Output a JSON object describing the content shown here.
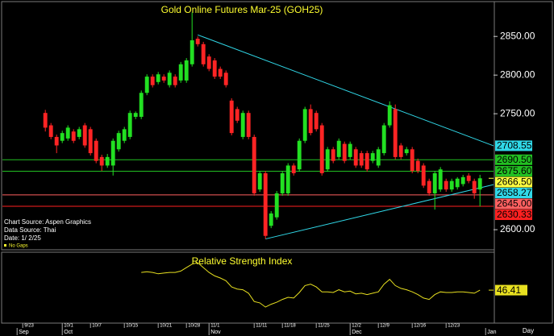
{
  "chart_data": [
    {
      "type": "candlestick",
      "title": "Gold Online Futures Mar-25 (GOH25)",
      "notes": [
        "Chart Source: Aspen Graphics",
        "Data Source: Thai",
        "Date:   1/ 2/25"
      ],
      "gap_note": "No Gaps",
      "xlim": [
        -7.6,
        79.4
      ],
      "ylim": [
        2574,
        2894
      ],
      "yticks": [
        {
          "value": 2600,
          "label": "2600.00"
        },
        {
          "value": 2750,
          "label": "2750.00"
        },
        {
          "value": 2800,
          "label": "2800.00"
        },
        {
          "value": 2850,
          "label": "2850.00"
        }
      ],
      "xticks": [
        {
          "value": -4,
          "label": "9/23"
        },
        {
          "value": 3,
          "label": "10/1"
        },
        {
          "value": 8,
          "label": "10/7"
        },
        {
          "value": 14,
          "label": "10/15"
        },
        {
          "value": 20,
          "label": "10/21"
        },
        {
          "value": 25,
          "label": "10/28"
        },
        {
          "value": 29,
          "label": "11/1"
        },
        {
          "value": 37,
          "label": "11/11"
        },
        {
          "value": 42,
          "label": "11/18"
        },
        {
          "value": 48,
          "label": "11/25"
        },
        {
          "value": 54,
          "label": "12/2"
        },
        {
          "value": 59,
          "label": "12/9"
        },
        {
          "value": 65,
          "label": "12/16"
        },
        {
          "value": 71,
          "label": "12/23"
        }
      ],
      "month_ticks": [
        {
          "value": -5,
          "label": "Sep"
        },
        {
          "value": 3,
          "label": "Oct"
        },
        {
          "value": 29,
          "label": "Nov"
        },
        {
          "value": 54,
          "label": "Dec"
        },
        {
          "value": 78,
          "label": "Jan"
        }
      ],
      "x_unit_label": "Day",
      "up_color": "#22e022",
      "down_color": "#ff2424",
      "open": [
        2751,
        2735,
        2720,
        2715,
        2718,
        2727,
        2720,
        2735,
        2730,
        2715,
        2694,
        2683,
        2683,
        2704,
        2715,
        2720,
        2746,
        2746,
        2777,
        2798,
        2791,
        2798,
        2787,
        2798,
        2793,
        2793,
        2814,
        2847,
        2840,
        2824,
        2819,
        2808,
        2803,
        2767,
        2756,
        2720,
        2751,
        2720,
        2652,
        2673,
        2605,
        2616,
        2647,
        2647,
        2683,
        2678,
        2715,
        2756,
        2751,
        2735,
        2678,
        2704,
        2694,
        2711,
        2694,
        2704,
        2699,
        2699,
        2689,
        2683,
        2699,
        2735,
        2756,
        2709,
        2699,
        2704,
        2689,
        2683,
        2663,
        2647,
        2652,
        2663,
        2652,
        2655,
        2659,
        2670,
        2663,
        2652
      ],
      "high": [
        2755,
        2738,
        2723,
        2728,
        2735,
        2730,
        2733,
        2738,
        2733,
        2718,
        2697,
        2698,
        2718,
        2728,
        2733,
        2754,
        2753,
        2780,
        2801,
        2801,
        2804,
        2801,
        2806,
        2801,
        2817,
        2822,
        2881,
        2850,
        2843,
        2827,
        2822,
        2811,
        2806,
        2770,
        2759,
        2754,
        2754,
        2723,
        2676,
        2676,
        2624,
        2650,
        2676,
        2686,
        2686,
        2718,
        2759,
        2762,
        2754,
        2738,
        2707,
        2707,
        2718,
        2714,
        2714,
        2707,
        2702,
        2702,
        2702,
        2707,
        2738,
        2766,
        2762,
        2712,
        2707,
        2707,
        2692,
        2686,
        2666,
        2676,
        2681,
        2666,
        2666,
        2668,
        2671,
        2673,
        2666,
        2671
      ],
      "low": [
        2727,
        2717,
        2699,
        2712,
        2715,
        2712,
        2717,
        2706,
        2696,
        2686,
        2676,
        2680,
        2670,
        2701,
        2712,
        2717,
        2743,
        2743,
        2774,
        2784,
        2788,
        2790,
        2784,
        2784,
        2790,
        2790,
        2811,
        2837,
        2811,
        2805,
        2795,
        2795,
        2784,
        2722,
        2738,
        2717,
        2717,
        2644,
        2649,
        2588,
        2602,
        2613,
        2644,
        2644,
        2670,
        2675,
        2712,
        2722,
        2727,
        2670,
        2675,
        2686,
        2691,
        2686,
        2691,
        2680,
        2680,
        2675,
        2686,
        2680,
        2696,
        2732,
        2691,
        2691,
        2696,
        2673,
        2673,
        2654,
        2644,
        2626,
        2649,
        2649,
        2649,
        2652,
        2656,
        2660,
        2640,
        2630
      ],
      "close": [
        2732,
        2720,
        2709,
        2725,
        2732,
        2715,
        2730,
        2709,
        2699,
        2689,
        2683,
        2694,
        2715,
        2725,
        2730,
        2751,
        2751,
        2777,
        2798,
        2787,
        2801,
        2793,
        2803,
        2787,
        2814,
        2819,
        2845,
        2840,
        2814,
        2808,
        2798,
        2798,
        2787,
        2725,
        2741,
        2751,
        2720,
        2647,
        2673,
        2592,
        2621,
        2647,
        2673,
        2683,
        2673,
        2715,
        2756,
        2725,
        2730,
        2673,
        2704,
        2689,
        2715,
        2689,
        2711,
        2683,
        2683,
        2678,
        2699,
        2704,
        2735,
        2761,
        2694,
        2694,
        2704,
        2676,
        2676,
        2657,
        2647,
        2673,
        2678,
        2652,
        2663,
        2666,
        2668,
        2663,
        2647,
        2666.5
      ],
      "close_labels": [
        null,
        null,
        null,
        null,
        null,
        null,
        null,
        null,
        null,
        null,
        null,
        null,
        null,
        null,
        null,
        null,
        null,
        null,
        null,
        null,
        null,
        null,
        null,
        null,
        null,
        null,
        null,
        null,
        null,
        null,
        null,
        null,
        null,
        null,
        null,
        null,
        null,
        null,
        null,
        null,
        null,
        null,
        null,
        null,
        null,
        null,
        null,
        null,
        null,
        null,
        null,
        null,
        null,
        null,
        null,
        null,
        null,
        null,
        null,
        null,
        null,
        null,
        null,
        null,
        null,
        null,
        null,
        null,
        null,
        null,
        null,
        null,
        null,
        null,
        null,
        null,
        null,
        "2666.50"
      ],
      "last_label_color": "#ffff40",
      "levels": [
        {
          "value": 2690.5,
          "label": "2690.50",
          "color": "#22c022"
        },
        {
          "value": 2675.6,
          "label": "2675.60",
          "color": "#22c022"
        },
        {
          "value": 2645,
          "label": "2645.00",
          "color": "#ff6060"
        },
        {
          "value": 2630.33,
          "label": "2630.33",
          "color": "#ff2020"
        }
      ],
      "trendlines": [
        {
          "x": [
            27,
            79.4
          ],
          "y": [
            2852,
            2708.55
          ],
          "color": "#30d8e8"
        },
        {
          "x": [
            39,
            79.4
          ],
          "y": [
            2588,
            2658.27
          ],
          "color": "#30d8e8"
        }
      ]
    },
    {
      "type": "line",
      "title": "Relative Strength Index",
      "xlim": [
        -7.6,
        79.4
      ],
      "ylim": [
        0,
        100
      ],
      "color": "#e8e020",
      "values": [
        null,
        null,
        null,
        null,
        null,
        null,
        null,
        null,
        null,
        null,
        null,
        null,
        null,
        null,
        null,
        null,
        null,
        72,
        73,
        72,
        70,
        71,
        72,
        72,
        74,
        79,
        84,
        86,
        79,
        72,
        67,
        64,
        60,
        51,
        48,
        47,
        42,
        30,
        28,
        22,
        26,
        29,
        33,
        36,
        35,
        43,
        53,
        55,
        51,
        44,
        44,
        43,
        47,
        44,
        45,
        41,
        42,
        40,
        42,
        44,
        55,
        62,
        53,
        49,
        47,
        44,
        40,
        35,
        33,
        40,
        44,
        43,
        43,
        44,
        44,
        43,
        42,
        46.41
      ]
    }
  ]
}
